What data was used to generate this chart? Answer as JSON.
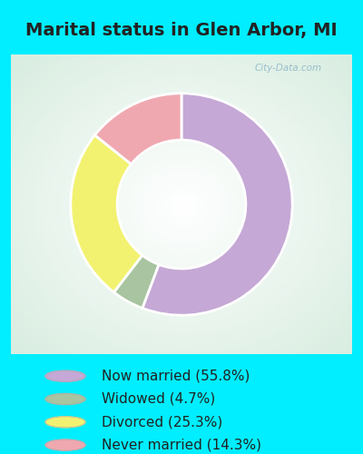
{
  "title": "Marital status in Glen Arbor, MI",
  "slices": [
    55.8,
    4.7,
    25.3,
    14.3
  ],
  "labels": [
    "Now married (55.8%)",
    "Widowed (4.7%)",
    "Divorced (25.3%)",
    "Never married (14.3%)"
  ],
  "colors": [
    "#c5a8d5",
    "#a8c4a0",
    "#f2f270",
    "#f0a8b0"
  ],
  "bg_color": "#00eeff",
  "chart_bg": "#daf0e6",
  "title_color": "#222222",
  "title_fontsize": 14,
  "legend_fontsize": 11,
  "watermark": "City-Data.com",
  "donut_width": 0.42,
  "start_angle": 90
}
